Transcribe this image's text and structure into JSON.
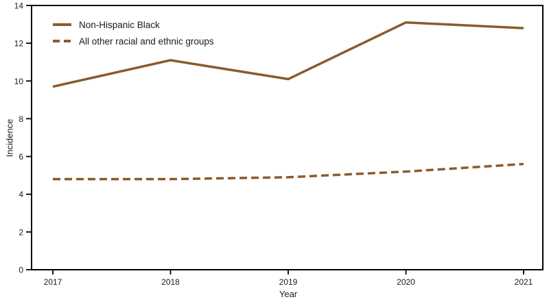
{
  "figure": {
    "background": "#ffffff",
    "axis_color": "#000000",
    "text_color": "#1a1a1a",
    "line_color": "#8B5A2B"
  },
  "chart_data": {
    "type": "line",
    "x": [
      2017,
      2018,
      2019,
      2020,
      2021
    ],
    "series": [
      {
        "name": "Non-Hispanic Black",
        "style": "solid",
        "values": [
          9.7,
          11.1,
          10.1,
          13.1,
          12.8
        ]
      },
      {
        "name": "All other racial and ethnic groups",
        "style": "dashed",
        "values": [
          4.8,
          4.8,
          4.9,
          5.2,
          5.6
        ]
      }
    ],
    "title": "",
    "xlabel": "Year",
    "ylabel": "Incidence",
    "ylim": [
      0,
      14
    ],
    "ytick_step": 2,
    "grid": false,
    "legend_position": "top-left-inside"
  }
}
